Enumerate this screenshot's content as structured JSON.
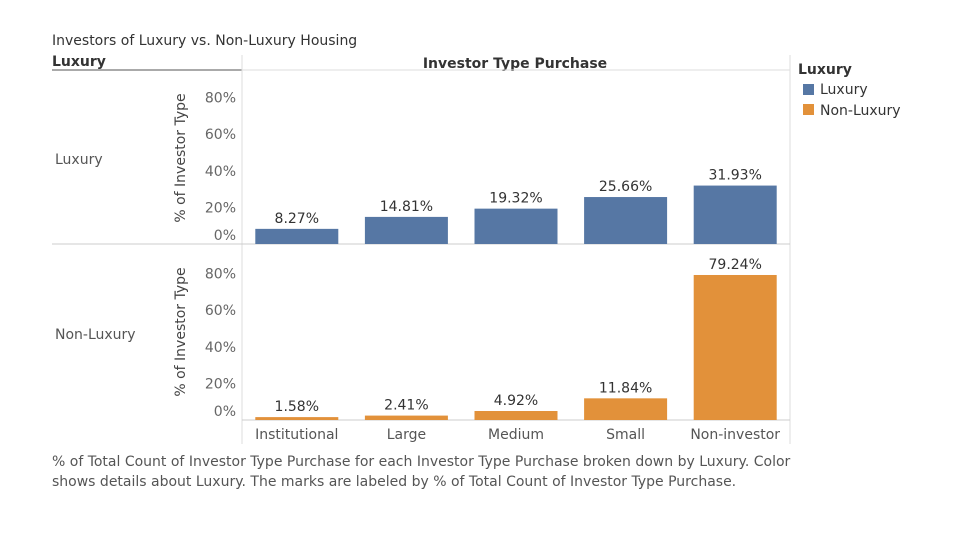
{
  "title": "Investors of Luxury vs. Non-Luxury Housing",
  "row_header": "Luxury",
  "column_header": "Investor Type Purchase",
  "legend": {
    "title": "Luxury",
    "items": [
      {
        "label": "Luxury",
        "color": "#5677a4"
      },
      {
        "label": "Non-Luxury",
        "color": "#e2913a"
      }
    ]
  },
  "caption": "% of Total Count of Investor Type Purchase for each Investor Type Purchase broken down by Luxury. Color shows details about Luxury.  The marks are labeled by % of Total Count of Investor Type Purchase.",
  "chart_data": {
    "type": "bar",
    "categories": [
      "Institutional",
      "Large",
      "Medium",
      "Small",
      "Non-investor"
    ],
    "ylabel": "% of Investor Type",
    "ylim": [
      0,
      85
    ],
    "yticks": [
      0,
      20,
      40,
      60,
      80
    ],
    "tick_suffix": "%",
    "grid": false,
    "legend_position": "right",
    "series": [
      {
        "name": "Luxury",
        "color": "#5677a4",
        "values": [
          8.27,
          14.81,
          19.32,
          25.66,
          31.93
        ],
        "labels": [
          "8.27%",
          "14.81%",
          "19.32%",
          "25.66%",
          "31.93%"
        ]
      },
      {
        "name": "Non-Luxury",
        "color": "#e2913a",
        "values": [
          1.58,
          2.41,
          4.92,
          11.84,
          79.24
        ],
        "labels": [
          "1.58%",
          "2.41%",
          "4.92%",
          "11.84%",
          "79.24%"
        ]
      }
    ]
  }
}
